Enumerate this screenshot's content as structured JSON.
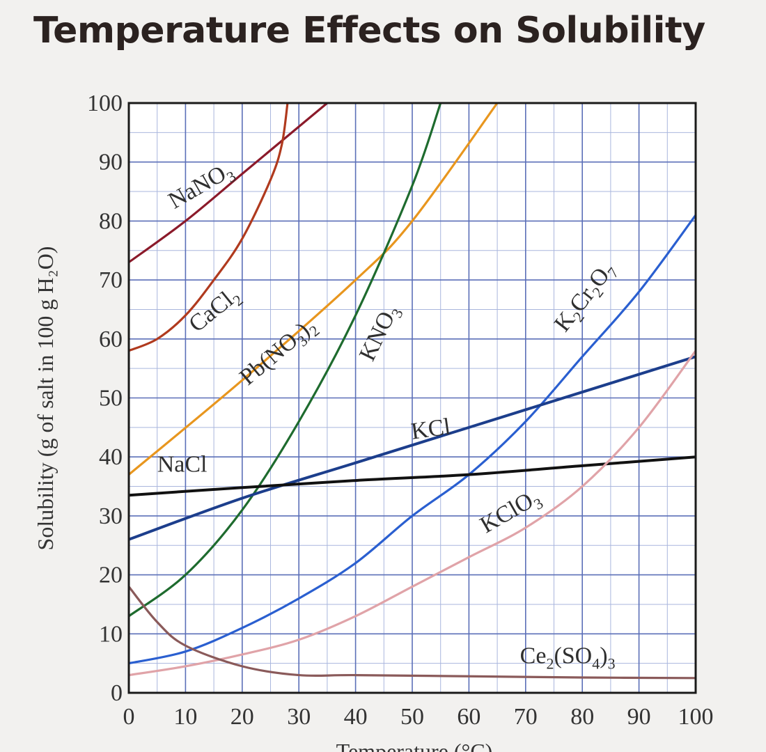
{
  "chart_data": {
    "type": "line",
    "title": "Temperature Effects on Solubility",
    "xlabel": "Temperature (°C)",
    "ylabel": "Solubility (g of salt in 100 g H₂O)",
    "xlim": [
      0,
      100
    ],
    "ylim": [
      0,
      100
    ],
    "x_ticks": [
      "0",
      "10",
      "20",
      "30",
      "40",
      "50",
      "60",
      "70",
      "80",
      "90",
      "100"
    ],
    "y_ticks": [
      "0",
      "10",
      "20",
      "30",
      "40",
      "50",
      "60",
      "70",
      "80",
      "90",
      "100"
    ],
    "grid": true,
    "series": [
      {
        "name": "NaNO3",
        "label_html": "NaNO<tspan class=\"sub\" dy=\"8\">3</tspan>",
        "color": "#8b1a2a",
        "points": [
          [
            0,
            73
          ],
          [
            10,
            80
          ],
          [
            20,
            88
          ],
          [
            30,
            96
          ],
          [
            35,
            100
          ]
        ]
      },
      {
        "name": "CaCl2",
        "label_html": "CaCl<tspan class=\"sub\" dy=\"8\">2</tspan>",
        "color": "#b03a1e",
        "points": [
          [
            0,
            58
          ],
          [
            5,
            60
          ],
          [
            10,
            64
          ],
          [
            15,
            70
          ],
          [
            20,
            77
          ],
          [
            25,
            87
          ],
          [
            27,
            93
          ],
          [
            28,
            100
          ]
        ]
      },
      {
        "name": "Pb(NO3)2",
        "label_html": "Pb(NO<tspan class=\"sub\" dy=\"8\">3</tspan><tspan dy=\"-8\">)</tspan><tspan class=\"sub\" dy=\"8\">2</tspan>",
        "color": "#e8961e",
        "points": [
          [
            0,
            37
          ],
          [
            20,
            53
          ],
          [
            40,
            70
          ],
          [
            50,
            80
          ],
          [
            65,
            100
          ]
        ]
      },
      {
        "name": "KNO3",
        "label_html": "KNO<tspan class=\"sub\" dy=\"8\">3</tspan>",
        "color": "#1e6b2e",
        "points": [
          [
            0,
            13
          ],
          [
            10,
            20
          ],
          [
            20,
            31
          ],
          [
            30,
            46
          ],
          [
            40,
            64
          ],
          [
            50,
            86
          ],
          [
            55,
            100
          ]
        ]
      },
      {
        "name": "K2Cr2O7",
        "label_html": "K<tspan class=\"sub\" dy=\"8\">2</tspan><tspan dy=\"-8\">Cr</tspan><tspan class=\"sub\" dy=\"8\">2</tspan><tspan dy=\"-8\">O</tspan><tspan class=\"sub\" dy=\"8\">7</tspan>",
        "color": "#2a5fd0",
        "points": [
          [
            0,
            5
          ],
          [
            10,
            7
          ],
          [
            20,
            11
          ],
          [
            30,
            16
          ],
          [
            40,
            22
          ],
          [
            50,
            30
          ],
          [
            60,
            37
          ],
          [
            70,
            46
          ],
          [
            80,
            57
          ],
          [
            90,
            68
          ],
          [
            100,
            81
          ]
        ]
      },
      {
        "name": "KCl",
        "label_html": "KCl",
        "color": "#1c3e8c",
        "points": [
          [
            0,
            26
          ],
          [
            20,
            33
          ],
          [
            40,
            39
          ],
          [
            60,
            45
          ],
          [
            80,
            51
          ],
          [
            100,
            57
          ]
        ]
      },
      {
        "name": "NaCl",
        "label_html": "NaCl",
        "color": "#111111",
        "points": [
          [
            0,
            33.5
          ],
          [
            20,
            34.8
          ],
          [
            40,
            36
          ],
          [
            60,
            37
          ],
          [
            80,
            38.5
          ],
          [
            100,
            40
          ]
        ]
      },
      {
        "name": "KClO3",
        "label_html": "KClO<tspan class=\"sub\" dy=\"8\">3</tspan>",
        "color": "#e0a3a8",
        "points": [
          [
            0,
            3
          ],
          [
            10,
            4.5
          ],
          [
            20,
            6.5
          ],
          [
            30,
            9
          ],
          [
            40,
            13
          ],
          [
            50,
            18
          ],
          [
            60,
            23
          ],
          [
            70,
            28
          ],
          [
            80,
            35
          ],
          [
            90,
            45
          ],
          [
            100,
            58
          ]
        ]
      },
      {
        "name": "Ce2(SO4)3",
        "label_html": "Ce<tspan class=\"sub\" dy=\"8\">2</tspan><tspan dy=\"-8\">(SO</tspan><tspan class=\"sub\" dy=\"8\">4</tspan><tspan dy=\"-8\">)</tspan><tspan class=\"sub\" dy=\"8\">3</tspan>",
        "color": "#8a5a5a",
        "points": [
          [
            0,
            18
          ],
          [
            5,
            12
          ],
          [
            10,
            8
          ],
          [
            20,
            4.5
          ],
          [
            30,
            3
          ],
          [
            40,
            3
          ],
          [
            60,
            2.8
          ],
          [
            80,
            2.6
          ],
          [
            100,
            2.5
          ]
        ]
      }
    ]
  }
}
